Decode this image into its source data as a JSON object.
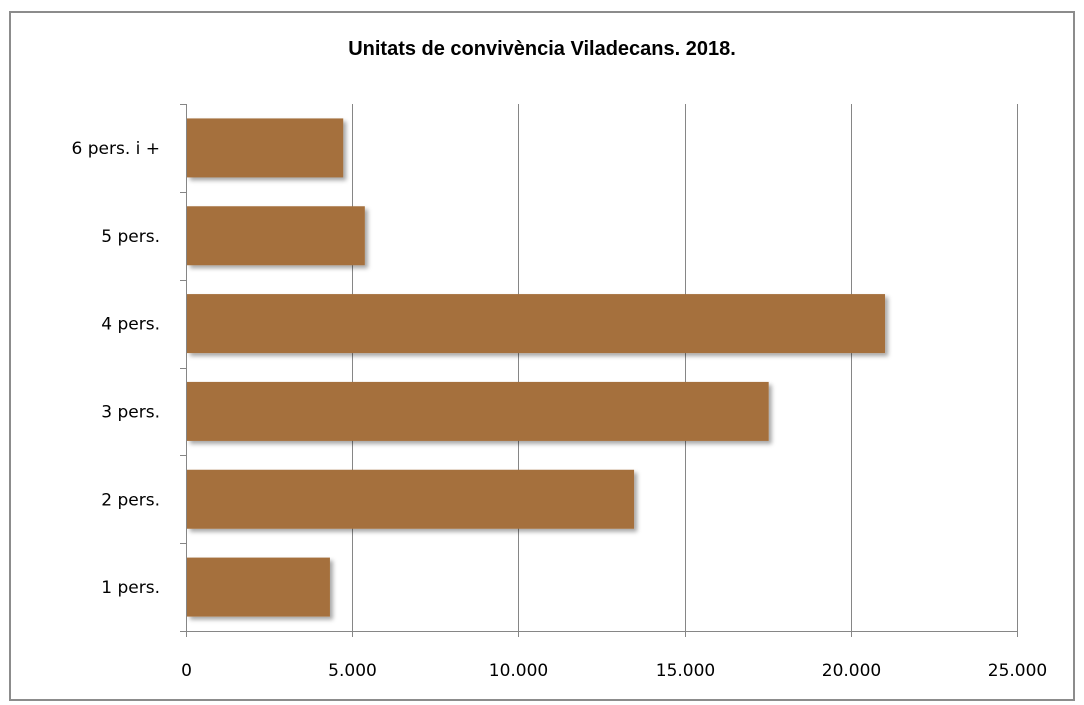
{
  "chart_data": {
    "type": "bar",
    "orientation": "horizontal",
    "title": "Unitats de convivència Viladecans. 2018.",
    "xlabel": "",
    "ylabel": "",
    "categories": [
      "1 pers.",
      "2 pers.",
      "3 pers.",
      "4 pers.",
      "5 pers.",
      "6 pers. i +"
    ],
    "values": [
      4300,
      13450,
      17500,
      21000,
      5350,
      4700
    ],
    "xlim": [
      0,
      25000
    ],
    "x_ticks": [
      0,
      5000,
      10000,
      15000,
      20000,
      25000
    ],
    "x_tick_labels": [
      "0",
      "5.000",
      "10.000",
      "15.000",
      "20.000",
      "25.000"
    ],
    "grid": "vertical",
    "legend": "none",
    "bar_color": "#a5703d",
    "grid_color": "#868686"
  }
}
